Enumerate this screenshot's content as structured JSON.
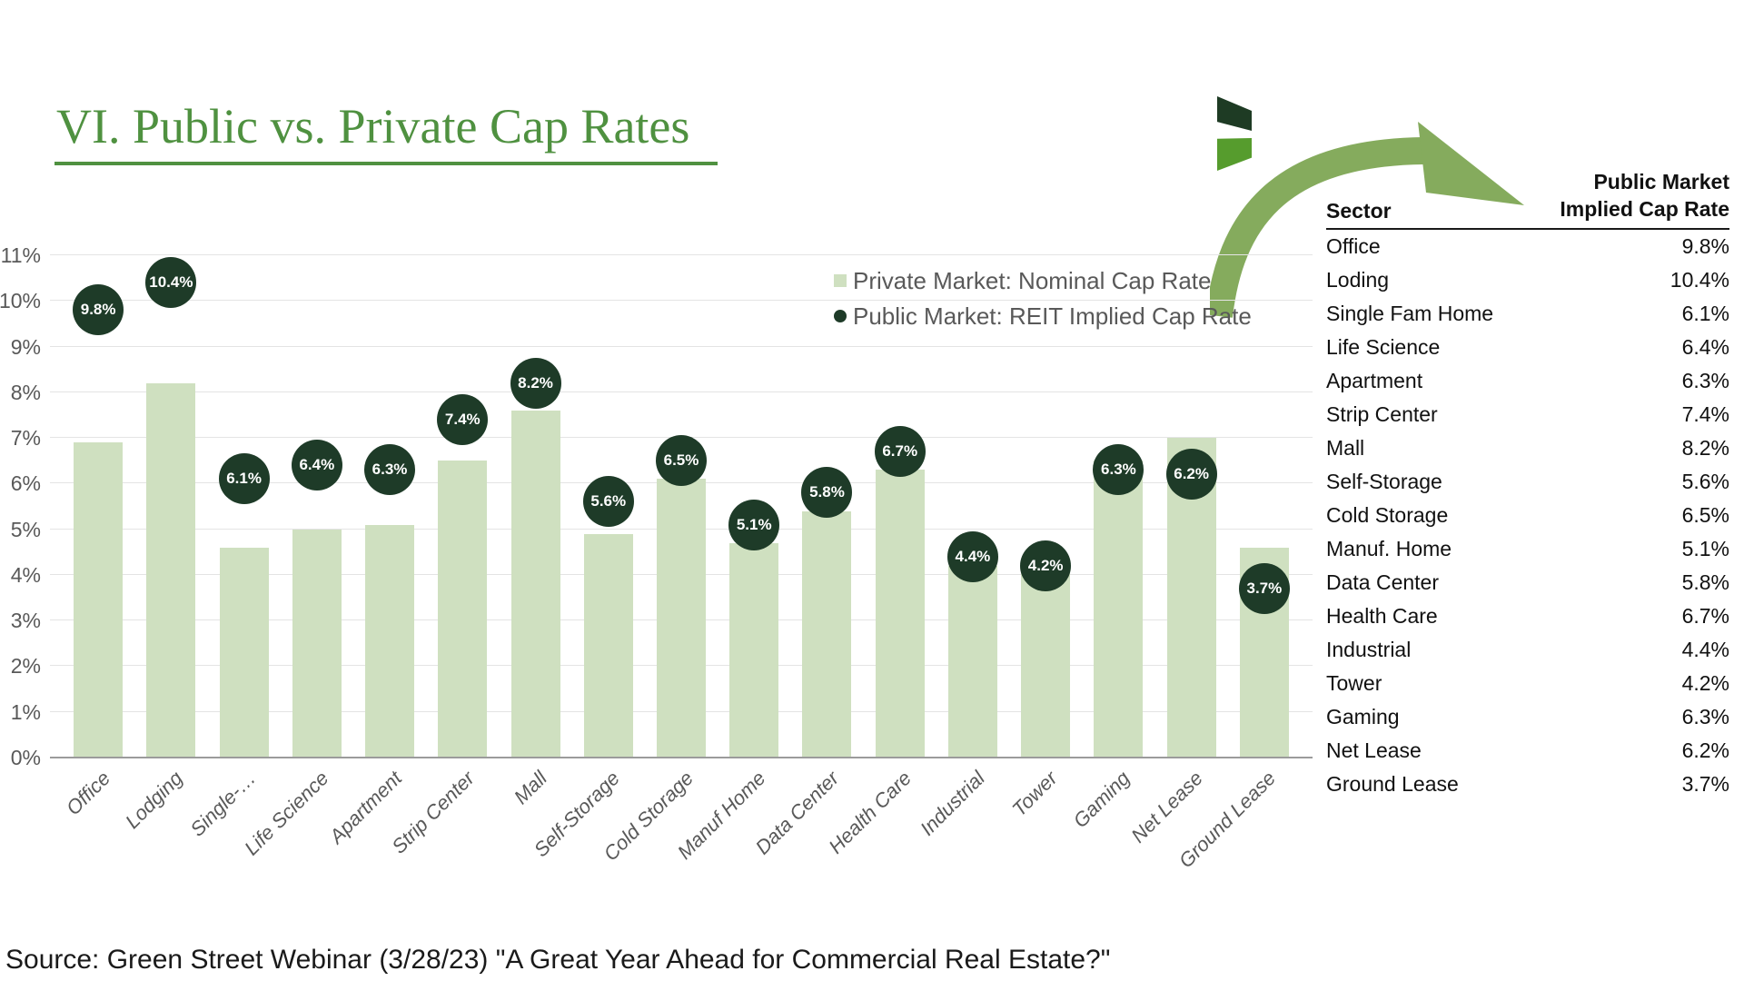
{
  "title": "VI. Public vs. Private Cap Rates",
  "source": "Source: Green Street Webinar (3/28/23) \"A Great Year Ahead for Commercial Real Estate?\"",
  "legend": {
    "private_label": "Private Market: Nominal Cap Rate",
    "public_label": "Public Market: REIT Implied Cap Rate"
  },
  "chart_data": {
    "type": "bar",
    "title": "VI. Public vs. Private Cap Rates",
    "categories": [
      "Office",
      "Lodging",
      "Single-…",
      "Life Science",
      "Apartment",
      "Strip Center",
      "Mall",
      "Self-Storage",
      "Cold Storage",
      "Manuf Home",
      "Data Center",
      "Health Care",
      "Industrial",
      "Tower",
      "Gaming",
      "Net Lease",
      "Ground Lease"
    ],
    "series": [
      {
        "name": "Private Market: Nominal Cap Rate",
        "render": "bar",
        "color": "#cfe0c0",
        "values": [
          6.9,
          8.2,
          4.6,
          5.0,
          5.1,
          6.5,
          7.6,
          4.9,
          6.1,
          4.7,
          5.4,
          6.3,
          4.2,
          4.1,
          6.5,
          7.0,
          4.6
        ]
      },
      {
        "name": "Public Market: REIT Implied Cap Rate",
        "render": "point",
        "color": "#1e3b28",
        "values": [
          9.8,
          10.4,
          6.1,
          6.4,
          6.3,
          7.4,
          8.2,
          5.6,
          6.5,
          5.1,
          5.8,
          6.7,
          4.4,
          4.2,
          6.3,
          6.2,
          3.7
        ],
        "labels": [
          "9.8%",
          "10.4%",
          "6.1%",
          "6.4%",
          "6.3%",
          "7.4%",
          "8.2%",
          "5.6%",
          "6.5%",
          "5.1%",
          "5.8%",
          "6.7%",
          "4.4%",
          "4.2%",
          "6.3%",
          "6.2%",
          "3.7%"
        ]
      }
    ],
    "xlabel": "",
    "ylabel": "",
    "ylim": [
      0,
      11
    ],
    "ytick_step": 1,
    "ytick_suffix": "%",
    "grid": true,
    "legend_position": "top-right"
  },
  "table": {
    "col1_header": "Sector",
    "col2_header_line1": "Public Market",
    "col2_header_line2": "Implied Cap Rate",
    "rows": [
      [
        "Office",
        "9.8%"
      ],
      [
        "Loding",
        "10.4%"
      ],
      [
        "Single Fam Home",
        "6.1%"
      ],
      [
        "Life Science",
        "6.4%"
      ],
      [
        "Apartment",
        "6.3%"
      ],
      [
        "Strip Center",
        "7.4%"
      ],
      [
        "Mall",
        "8.2%"
      ],
      [
        "Self-Storage",
        "5.6%"
      ],
      [
        "Cold Storage",
        "6.5%"
      ],
      [
        "Manuf. Home",
        "5.1%"
      ],
      [
        "Data Center",
        "5.8%"
      ],
      [
        "Health Care",
        "6.7%"
      ],
      [
        "Industrial",
        "4.4%"
      ],
      [
        "Tower",
        "4.2%"
      ],
      [
        "Gaming",
        "6.3%"
      ],
      [
        "Net Lease",
        "6.2%"
      ],
      [
        "Ground Lease",
        "3.7%"
      ]
    ]
  },
  "colors": {
    "title_green": "#4f9140",
    "bar_fill": "#cfe0c0",
    "marker_fill": "#1e3b28",
    "arrow_green": "#85ab5d",
    "logo_dark_green": "#1e3b24",
    "logo_light_green": "#569c2d",
    "axis_text": "#595959",
    "gridline": "#e4e4e4"
  }
}
